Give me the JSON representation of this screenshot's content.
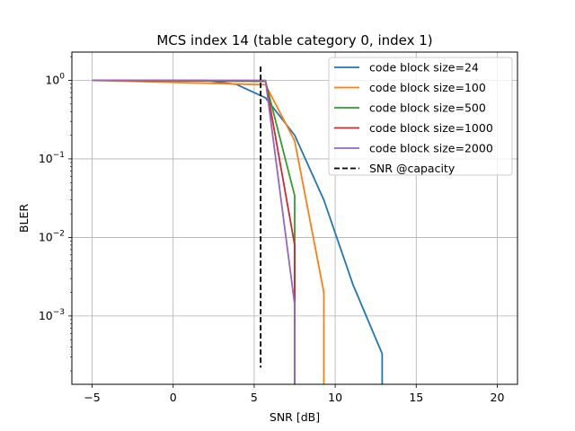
{
  "chart_data": {
    "type": "line",
    "title": "MCS index 14 (table category 0, index 1)",
    "xlabel": "SNR [dB]",
    "ylabel": "BLER",
    "xlim": [
      -6.25,
      21.25
    ],
    "ylim_log10": [
      -3.87,
      0.36
    ],
    "y_scale": "log",
    "grid": true,
    "legend_position": "top-right",
    "x_ticks": [
      -5,
      0,
      5,
      10,
      15,
      20
    ],
    "x_tick_labels": [
      "−5",
      "0",
      "5",
      "10",
      "15",
      "20"
    ],
    "y_ticks": [
      {
        "value": 1,
        "base": "10",
        "exp": "0"
      },
      {
        "value": 0.1,
        "base": "10",
        "exp": "−1"
      },
      {
        "value": 0.01,
        "base": "10",
        "exp": "−2"
      },
      {
        "value": 0.001,
        "base": "10",
        "exp": "−3"
      }
    ],
    "series": [
      {
        "name": "code block size=24",
        "color": "#1f77b4",
        "style": "solid",
        "x": [
          -5,
          2,
          3.9,
          5.7,
          7.5,
          9.3,
          11.1,
          12.9,
          12.9
        ],
        "y": [
          1.0,
          1.0,
          0.89,
          0.6,
          0.2,
          0.03,
          0.0025,
          0.00033,
          0.00013
        ]
      },
      {
        "name": "code block size=100",
        "color": "#ff7f0e",
        "style": "solid",
        "x": [
          -5,
          5.7,
          7.5,
          9.3,
          9.3
        ],
        "y": [
          1.0,
          0.88,
          0.17,
          0.002,
          0.00013
        ]
      },
      {
        "name": "code block size=500",
        "color": "#2ca02c",
        "style": "solid",
        "x": [
          -5,
          5.7,
          7.5,
          7.5
        ],
        "y": [
          1.0,
          0.97,
          0.034,
          0.00013
        ]
      },
      {
        "name": "code block size=1000",
        "color": "#d62728",
        "style": "solid",
        "x": [
          -5,
          5.7,
          7.5,
          7.5
        ],
        "y": [
          1.0,
          0.99,
          0.008,
          0.00013
        ]
      },
      {
        "name": "code block size=2000",
        "color": "#9467bd",
        "style": "solid",
        "x": [
          -5,
          5.7,
          7.5,
          7.5
        ],
        "y": [
          1.0,
          1.0,
          0.0014,
          0.00013
        ]
      },
      {
        "name": "SNR @capacity",
        "color": "#000000",
        "style": "dashed",
        "x": [
          5.4,
          5.4
        ],
        "y": [
          1.5,
          0.00022
        ]
      }
    ]
  }
}
